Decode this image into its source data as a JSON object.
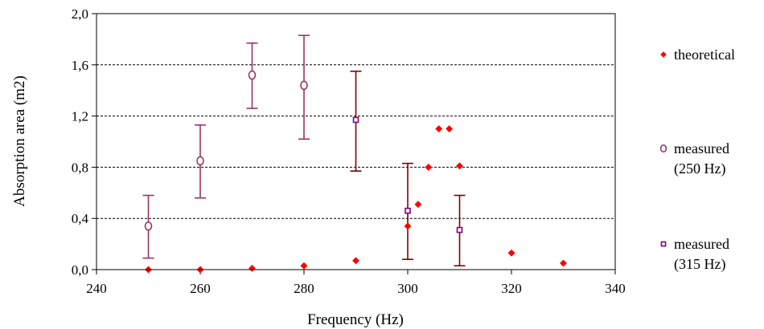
{
  "chart_data": {
    "type": "scatter",
    "xlabel": "Frequency (Hz)",
    "ylabel": "Absorption area (m2)",
    "xlim": [
      240,
      340
    ],
    "ylim": [
      0,
      2
    ],
    "x_ticks": [
      240,
      260,
      280,
      300,
      320,
      340
    ],
    "x_tick_labels": [
      "240",
      "260",
      "280",
      "300",
      "320",
      "340"
    ],
    "y_ticks": [
      0,
      0.4,
      0.8,
      1.2,
      1.6,
      2.0
    ],
    "y_tick_labels": [
      "0,0",
      "0,4",
      "0,8",
      "1,2",
      "1,6",
      "2,0"
    ],
    "grid": "horizontal dashed",
    "legend_position": "right",
    "series": [
      {
        "name": "theoretical",
        "marker": "diamond",
        "color": "#ff0000",
        "points": [
          {
            "x": 250,
            "y": 0.0
          },
          {
            "x": 260,
            "y": 0.0
          },
          {
            "x": 270,
            "y": 0.01
          },
          {
            "x": 280,
            "y": 0.03
          },
          {
            "x": 290,
            "y": 0.07
          },
          {
            "x": 300,
            "y": 0.34
          },
          {
            "x": 302,
            "y": 0.51
          },
          {
            "x": 304,
            "y": 0.8
          },
          {
            "x": 306,
            "y": 1.1
          },
          {
            "x": 308,
            "y": 1.1
          },
          {
            "x": 310,
            "y": 0.81
          },
          {
            "x": 320,
            "y": 0.13
          },
          {
            "x": 330,
            "y": 0.05
          }
        ]
      },
      {
        "name": "measured\n(250 Hz)",
        "name_lines": [
          "measured",
          "(250 Hz)"
        ],
        "marker": "circle",
        "color": "#993366",
        "points": [
          {
            "x": 250,
            "y": 0.34,
            "err_low": 0.09,
            "err_high": 0.58
          },
          {
            "x": 260,
            "y": 0.85,
            "err_low": 0.56,
            "err_high": 1.13
          },
          {
            "x": 270,
            "y": 1.52,
            "err_low": 1.26,
            "err_high": 1.77
          },
          {
            "x": 280,
            "y": 1.44,
            "err_low": 1.02,
            "err_high": 1.83
          }
        ]
      },
      {
        "name": "measured\n(315 Hz)",
        "name_lines": [
          "measured",
          "(315 Hz)"
        ],
        "marker": "square",
        "color": "#800080",
        "error_color": "#800000",
        "points": [
          {
            "x": 290,
            "y": 1.17,
            "err_low": 0.77,
            "err_high": 1.55
          },
          {
            "x": 300,
            "y": 0.46,
            "err_low": 0.08,
            "err_high": 0.83
          },
          {
            "x": 310,
            "y": 0.31,
            "err_low": 0.03,
            "err_high": 0.58
          }
        ]
      }
    ]
  }
}
